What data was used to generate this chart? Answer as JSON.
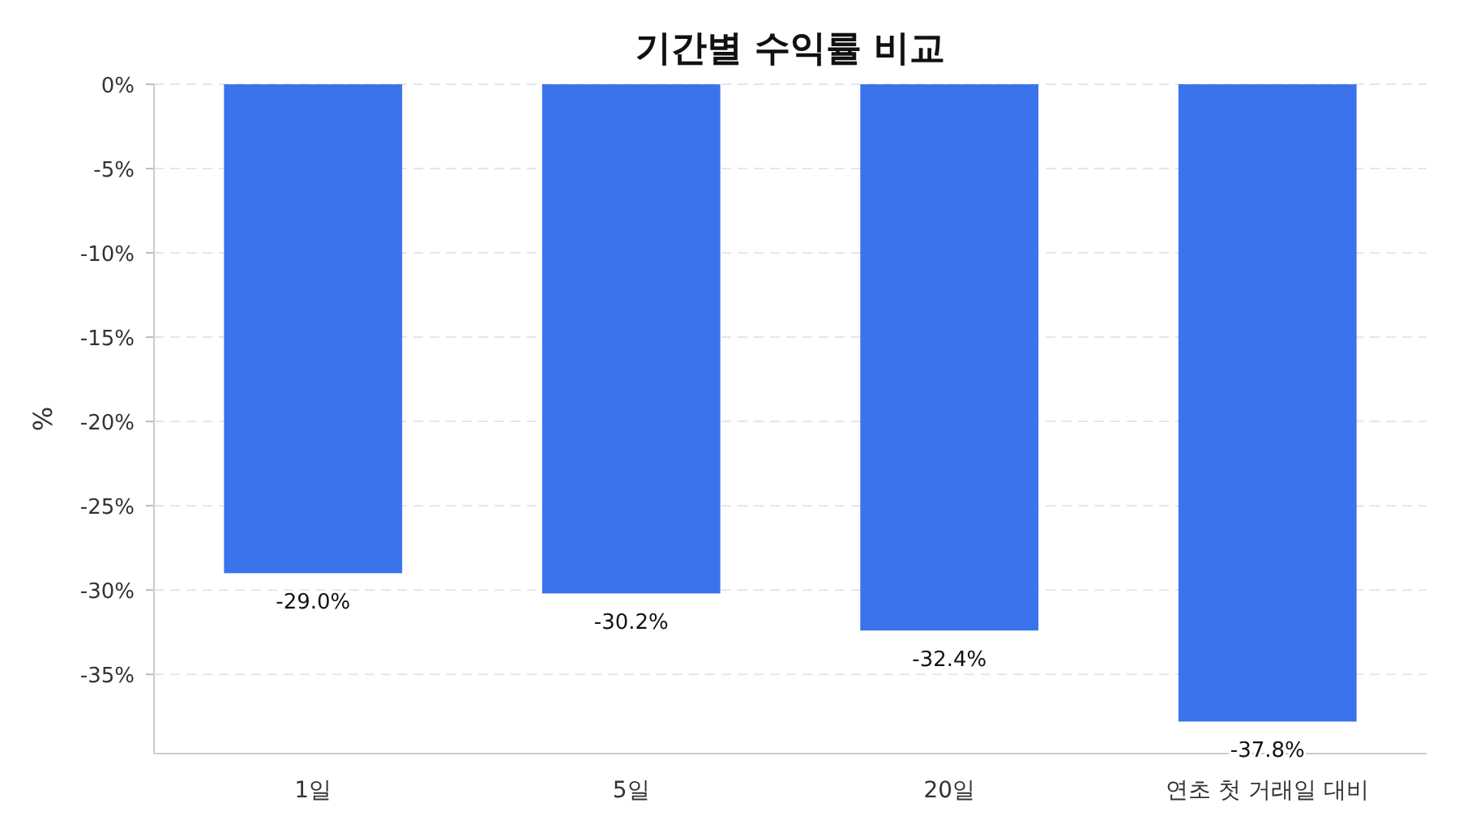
{
  "chart_data": {
    "type": "bar",
    "title": "기간별 수익률 비교",
    "ylabel": "%",
    "categories": [
      "1일",
      "5일",
      "20일",
      "연초 첫 거래일 대비"
    ],
    "values": [
      -29.0,
      -30.2,
      -32.4,
      -37.8
    ],
    "value_labels": [
      "-29.0%",
      "-30.2%",
      "-32.4%",
      "-37.8%"
    ],
    "color": "#3b73ed",
    "ylim": [
      -39.7,
      0
    ],
    "yticks": [
      {
        "value": 0,
        "label": "0%"
      },
      {
        "value": -5,
        "label": "-5%"
      },
      {
        "value": -10,
        "label": "-10%"
      },
      {
        "value": -15,
        "label": "-15%"
      },
      {
        "value": -20,
        "label": "-20%"
      },
      {
        "value": -25,
        "label": "-25%"
      },
      {
        "value": -30,
        "label": "-30%"
      },
      {
        "value": -35,
        "label": "-35%"
      }
    ],
    "grid": "y"
  }
}
